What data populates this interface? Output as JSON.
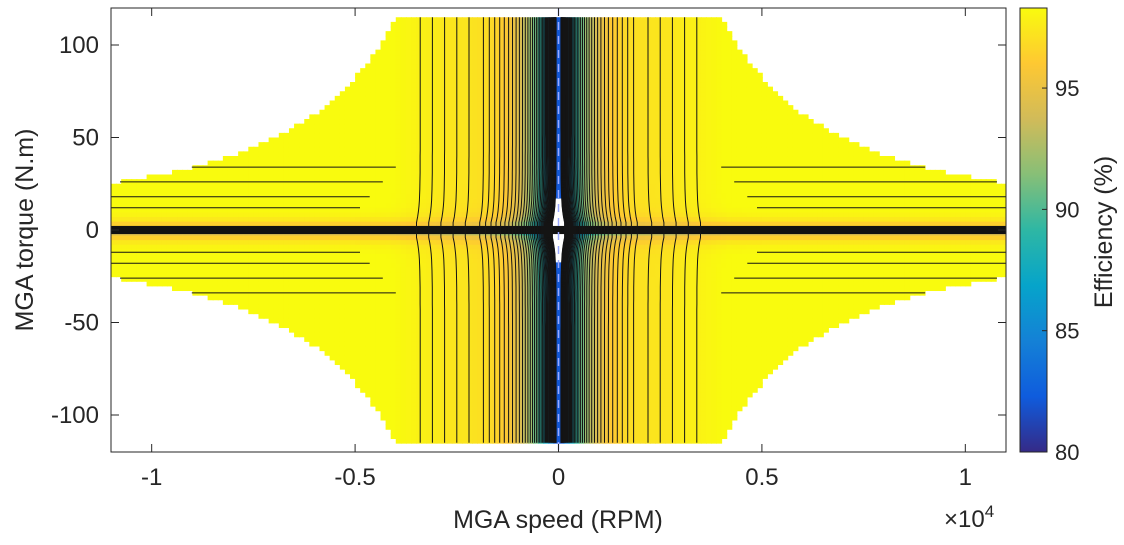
{
  "chart_data": {
    "type": "contour",
    "xlabel": "MGA speed (RPM)",
    "ylabel": "MGA torque (N.m)",
    "x_exponent_label": "×10",
    "x_exponent_power": "4",
    "colorbar_label": "Efficiency (%)",
    "xlim": [
      -1.1,
      1.1
    ],
    "ylim": [
      -120,
      120
    ],
    "x_ticks": [
      -1,
      -0.5,
      0,
      0.5,
      1
    ],
    "x_tick_labels": [
      "-1",
      "-0.5",
      "0",
      "0.5",
      "1"
    ],
    "y_ticks": [
      100,
      50,
      0,
      -50,
      -100
    ],
    "y_tick_labels": [
      "100",
      "50",
      "0",
      "-50",
      "-100"
    ],
    "colorbar_range": [
      80,
      98.3
    ],
    "colorbar_ticks": [
      95,
      90,
      85,
      80
    ],
    "colorbar_tick_labels": [
      "95",
      "90",
      "85",
      "80"
    ],
    "max_torque": 115,
    "base_speed": 0.4,
    "max_speed": 1.1,
    "colormap": "parula",
    "colormap_colors": [
      "#352a87",
      "#0f5cdd",
      "#1481d6",
      "#06a4ca",
      "#2eb7a4",
      "#87bf77",
      "#d1bb59",
      "#fec832",
      "#f9fb0e"
    ]
  }
}
